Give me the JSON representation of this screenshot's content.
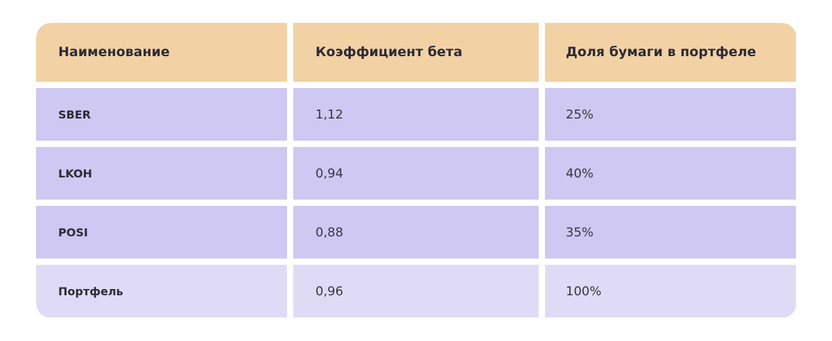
{
  "table": {
    "headers": [
      "Наименование",
      "Коэффициент бета",
      "Доля бумаги в портфеле"
    ],
    "rows": [
      {
        "name": "SBER",
        "beta": "1,12",
        "share": "25%"
      },
      {
        "name": "LKOH",
        "beta": "0,94",
        "share": "40%"
      },
      {
        "name": "POSI",
        "beta": "0,88",
        "share": "35%"
      },
      {
        "name": "Портфель",
        "beta": "0,96",
        "share": "100%"
      }
    ]
  },
  "colors": {
    "header_bg": "#f2d2a5",
    "row_bg": "#cec8f2",
    "total_row_bg": "#dfdbf7",
    "text": "#2e2a35"
  }
}
